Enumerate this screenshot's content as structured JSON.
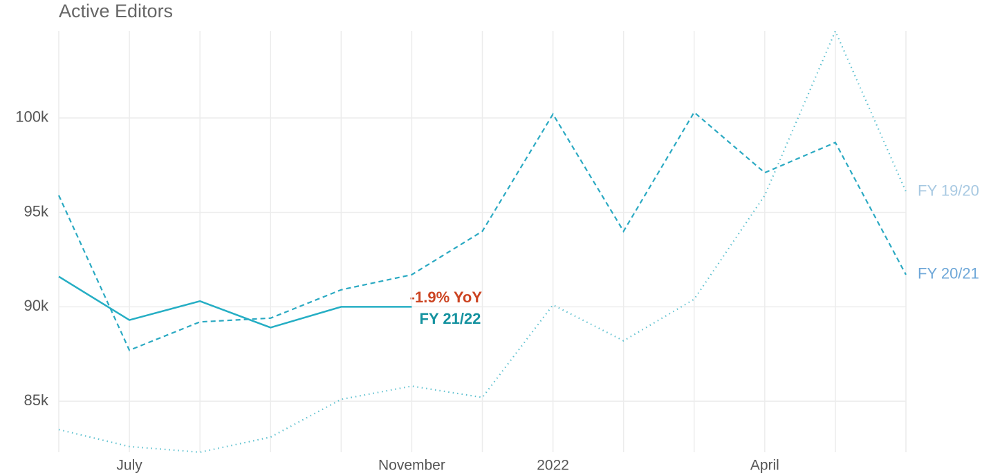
{
  "chart_data": {
    "type": "line",
    "title": "Active Editors",
    "categories": [
      null,
      "July",
      null,
      null,
      null,
      "November",
      null,
      "2022",
      null,
      null,
      "April",
      null,
      null
    ],
    "series": [
      {
        "name": "FY 21/22",
        "color": "#25aec4",
        "style": "solid",
        "values": [
          91600,
          89300,
          90300,
          88900,
          90000,
          90000,
          null,
          null,
          null,
          null,
          null,
          null,
          null
        ]
      },
      {
        "name": "FY 20/21",
        "color": "#2aa9c2",
        "style": "dashed",
        "values": [
          95900,
          87700,
          89200,
          89400,
          90900,
          91700,
          94000,
          100200,
          94000,
          100300,
          97100,
          98700,
          91700
        ]
      },
      {
        "name": "FY 19/20",
        "color": "#5cc0cf",
        "style": "dotted",
        "values": [
          83500,
          82600,
          82300,
          83100,
          85100,
          85800,
          85200,
          90100,
          88200,
          90400,
          95900,
          104600,
          96100
        ]
      }
    ],
    "label_colors": [
      "#14929f",
      "#6ea7d8",
      "#a8c9e2"
    ],
    "annotation": "-1.9% YoY",
    "annotation_color": "#cc4422",
    "ylim": [
      82300,
      104600
    ],
    "yticks": [
      {
        "value": 85000,
        "label": "85k"
      },
      {
        "value": 90000,
        "label": "90k"
      },
      {
        "value": 95000,
        "label": "95k"
      },
      {
        "value": 100000,
        "label": "100k"
      }
    ],
    "grid": true
  }
}
